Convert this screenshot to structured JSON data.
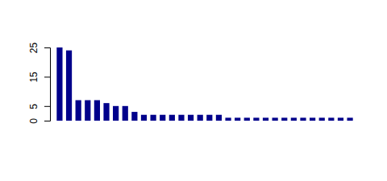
{
  "chart_data": {
    "type": "bar",
    "categories": [
      null,
      null,
      null,
      null,
      null,
      null,
      null,
      null,
      null,
      null,
      null,
      null,
      null,
      null,
      null,
      null,
      null,
      null,
      null,
      null,
      null,
      null,
      null,
      null,
      null,
      null,
      null,
      null,
      null,
      null,
      null,
      null
    ],
    "values": [
      25,
      24,
      7,
      7,
      7,
      6,
      5,
      5,
      3,
      2,
      2,
      2,
      2,
      2,
      2,
      2,
      2,
      2,
      1,
      1,
      1,
      1,
      1,
      1,
      1,
      1,
      1,
      1,
      1,
      1,
      1,
      1
    ],
    "color": "#00008b",
    "ylim": [
      0,
      25
    ],
    "yticks": [
      0,
      5,
      15,
      25
    ],
    "grid": false,
    "tick_labels": "y"
  }
}
